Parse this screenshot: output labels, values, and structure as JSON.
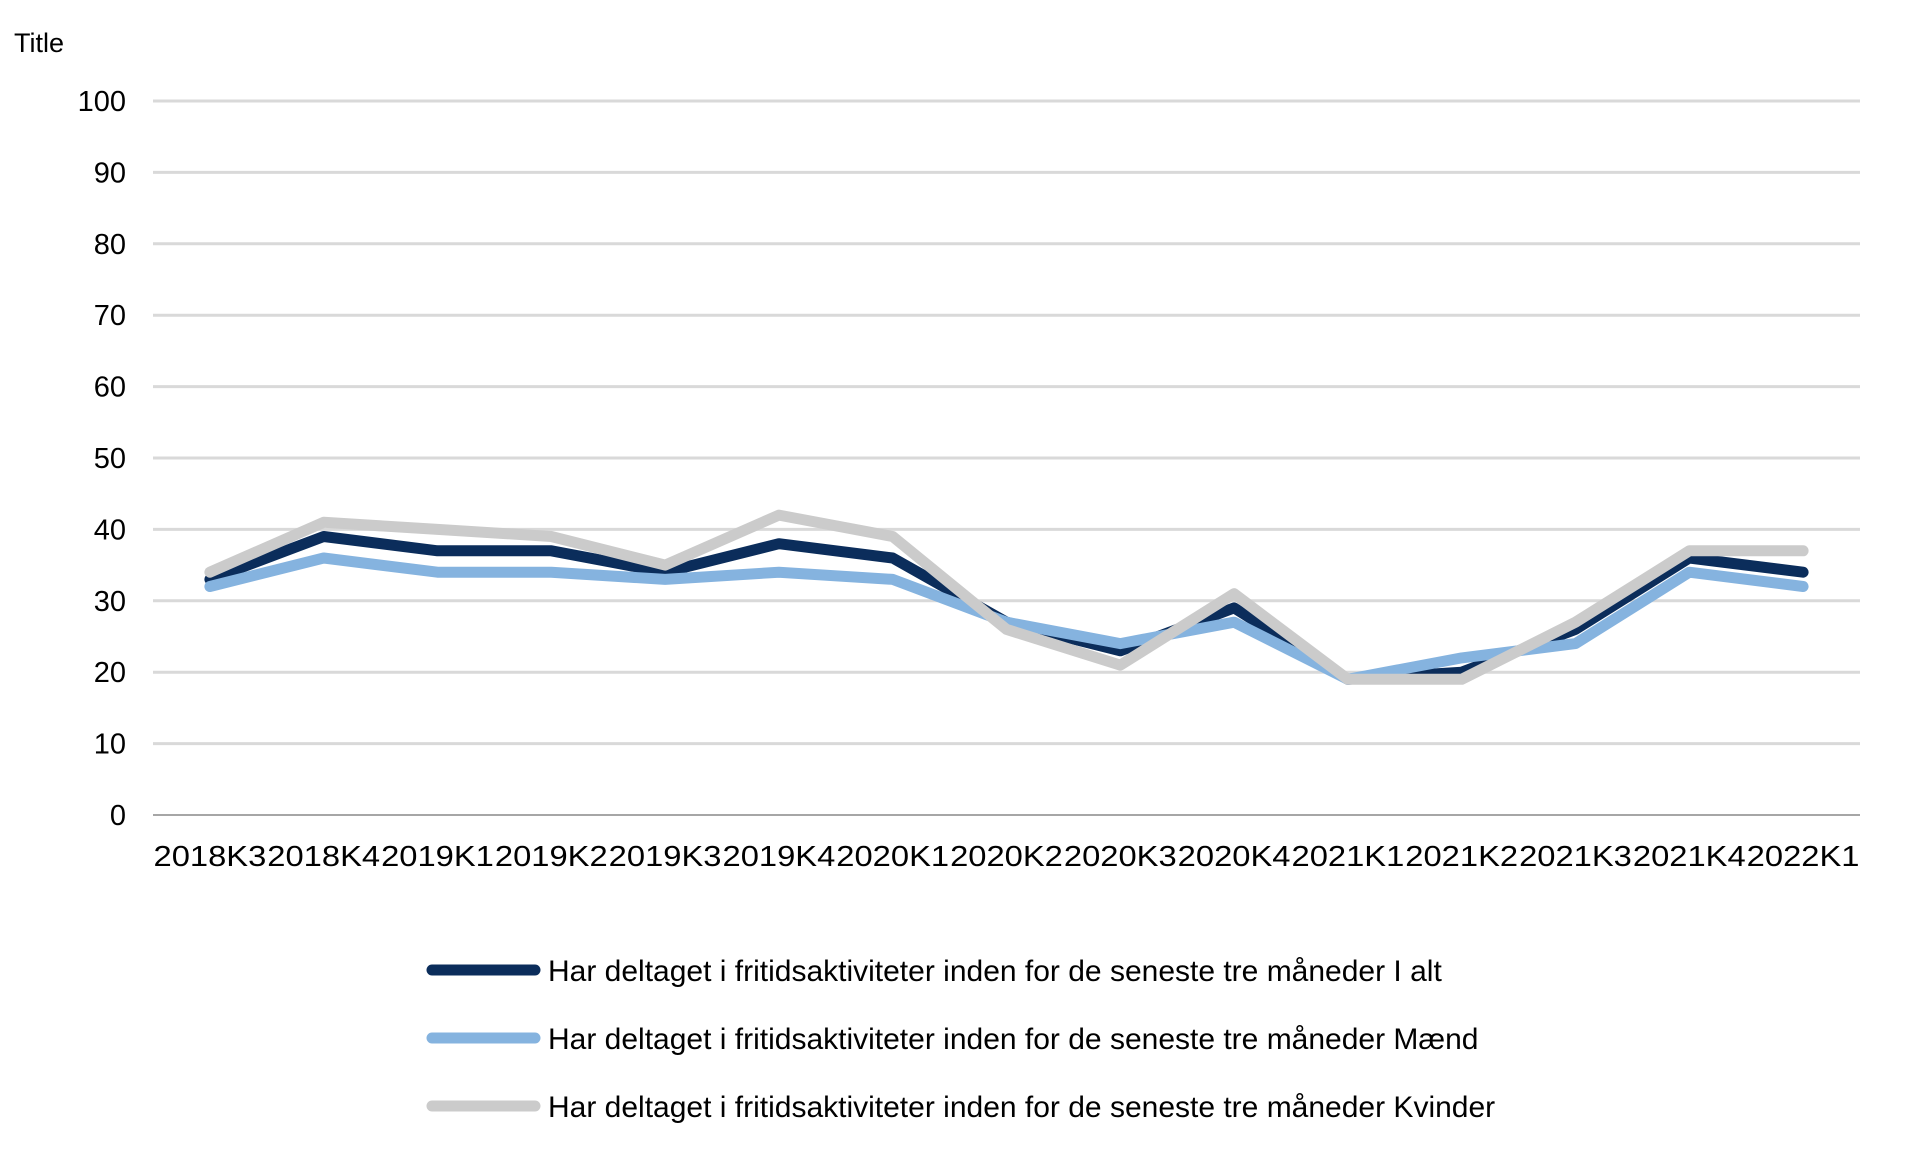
{
  "chart_data": {
    "type": "line",
    "ylabel": "Title",
    "ylim": [
      0,
      100
    ],
    "yticks": [
      "0",
      "10",
      "20",
      "30",
      "40",
      "50",
      "60",
      "70",
      "80",
      "90",
      "100"
    ],
    "categories": [
      "2018K3",
      "2018K4",
      "2019K1",
      "2019K2",
      "2019K3",
      "2019K4",
      "2020K1",
      "2020K2",
      "2020K3",
      "2020K4",
      "2021K1",
      "2021K2",
      "2021K3",
      "2021K4",
      "2022K1"
    ],
    "grid": true,
    "legend_position": "bottom",
    "series": [
      {
        "name": "Har deltaget i fritidsaktiviteter inden for de seneste tre måneder I alt",
        "color": "#0b2d5b",
        "values": [
          33,
          39,
          37,
          37,
          34,
          38,
          36,
          27,
          23,
          29,
          19,
          20,
          26,
          36,
          34
        ]
      },
      {
        "name": "Har deltaget i fritidsaktiviteter inden for de seneste tre måneder Mænd",
        "color": "#85b3df",
        "values": [
          32,
          36,
          34,
          34,
          33,
          34,
          33,
          27,
          24,
          27,
          19,
          22,
          24,
          34,
          32
        ]
      },
      {
        "name": "Har deltaget i fritidsaktiviteter inden for de seneste tre måneder Kvinder",
        "color": "#cbcbcb",
        "values": [
          34,
          41,
          40,
          39,
          35,
          42,
          39,
          26,
          21,
          31,
          19,
          19,
          27,
          37,
          37
        ]
      }
    ]
  }
}
